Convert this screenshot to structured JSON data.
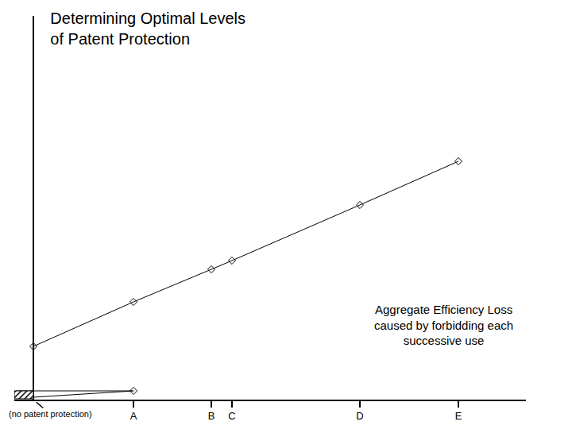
{
  "chart_data": {
    "type": "line",
    "title": "Determining Optimal Levels\nof Patent Protection",
    "xlim": [
      -24,
      620
    ],
    "ylim": [
      0,
      483
    ],
    "xticks": [
      {
        "value": 126,
        "label": "A"
      },
      {
        "value": 224,
        "label": "B"
      },
      {
        "value": 250,
        "label": "C"
      },
      {
        "value": 411,
        "label": "D"
      },
      {
        "value": 535,
        "label": "E"
      }
    ],
    "yticks": [],
    "tick_labels": "x",
    "grid": false,
    "color": "#000000",
    "series": [
      {
        "type": "line",
        "marker": "diamond",
        "line_style": "solid",
        "x": [
          0,
          126,
          224,
          250,
          411,
          535
        ],
        "values": [
          67,
          123,
          164,
          175,
          245,
          300
        ]
      },
      {
        "type": "line",
        "marker": "none",
        "line_style": "solid",
        "x": [
          -22,
          126,
          0
        ],
        "values": [
          11,
          11,
          3
        ]
      },
      {
        "type": "line",
        "marker": "diamond",
        "line_style": "solid",
        "x": [
          126
        ],
        "values": [
          11
        ]
      },
      {
        "type": "area",
        "marker": "none",
        "line_style": "solid",
        "x": [
          -24,
          0,
          0,
          -24,
          -24
        ],
        "values": [
          1,
          1,
          11,
          11,
          1
        ]
      }
    ],
    "annotations": [
      {
        "text": "Aggregate Efficiency Loss\ncaused by forbidding each\nsuccessive use",
        "x": 516,
        "y": 94
      },
      {
        "text": "(no patent protection)",
        "x": 0,
        "y": 0
      }
    ]
  }
}
